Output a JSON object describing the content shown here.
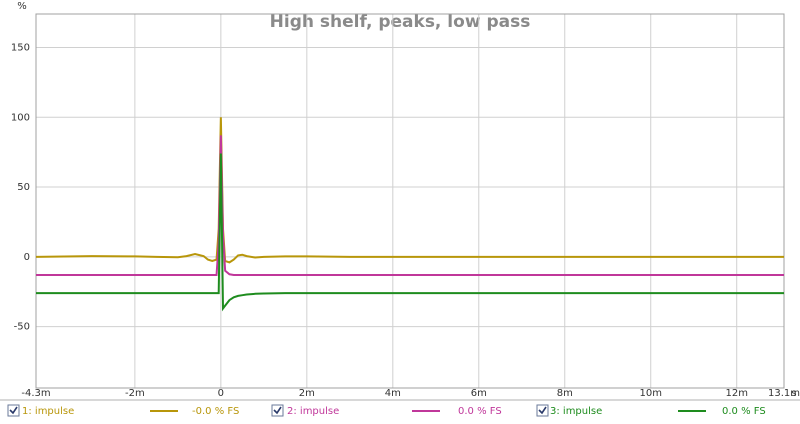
{
  "chart_data": {
    "type": "line",
    "title": "High shelf, peaks, low pass",
    "y_label": "%",
    "x_label": "s",
    "x": [
      -4.3,
      -3,
      -2,
      -1.5,
      -1,
      -0.8,
      -0.6,
      -0.4,
      -0.3,
      -0.2,
      -0.1,
      -0.05,
      0,
      0.05,
      0.1,
      0.2,
      0.3,
      0.4,
      0.5,
      0.6,
      0.8,
      1,
      1.5,
      2,
      3,
      4,
      6,
      8,
      10,
      12,
      13.1
    ],
    "series": [
      {
        "name": "1: impulse",
        "readout": "-0.0 % FS",
        "color": "#b8960a",
        "values": [
          0,
          0.5,
          0.3,
          0,
          -0.3,
          0.5,
          2,
          0.5,
          -2,
          -3,
          -2,
          20,
          100,
          20,
          -3,
          -4,
          -2,
          1,
          1.5,
          0.5,
          -0.5,
          0,
          0.3,
          0.3,
          0,
          0,
          0,
          0,
          0,
          0,
          0
        ]
      },
      {
        "name": "2: impulse",
        "readout": "0.0 % FS",
        "color": "#c0379a",
        "values": [
          -13,
          -13,
          -13,
          -13,
          -13,
          -13,
          -13,
          -13,
          -13,
          -13,
          -13,
          10,
          87,
          15,
          -10,
          -12.5,
          -13,
          -13,
          -13,
          -13,
          -13,
          -13,
          -13,
          -13,
          -13,
          -13,
          -13,
          -13,
          -13,
          -13,
          -13
        ]
      },
      {
        "name": "3: impulse",
        "readout": "0.0 % FS",
        "color": "#1e8c1e",
        "values": [
          -26,
          -26,
          -26,
          -26,
          -26,
          -26,
          -26,
          -26,
          -26,
          -26,
          -26,
          -26,
          74,
          -37,
          -35,
          -31,
          -29,
          -28,
          -27.5,
          -27,
          -26.5,
          -26.3,
          -26,
          -26,
          -26,
          -26,
          -26,
          -26,
          -26,
          -26,
          -26
        ]
      }
    ],
    "xlim": [
      -4.3,
      13.1
    ],
    "xticks": [
      {
        "value": -4.3,
        "label": "-4.3m"
      },
      {
        "value": -2,
        "label": "-2m"
      },
      0,
      {
        "value": 2,
        "label": "2m"
      },
      {
        "value": 4,
        "label": "4m"
      },
      {
        "value": 6,
        "label": "6m"
      },
      {
        "value": 8,
        "label": "8m"
      },
      {
        "value": 10,
        "label": "10m"
      },
      {
        "value": 12,
        "label": "12m"
      },
      {
        "value": 13.1,
        "label": "13.1m"
      }
    ],
    "ylim": [
      -94,
      174
    ],
    "yticks": [
      -50,
      0,
      50,
      100,
      150
    ],
    "grid": true
  }
}
